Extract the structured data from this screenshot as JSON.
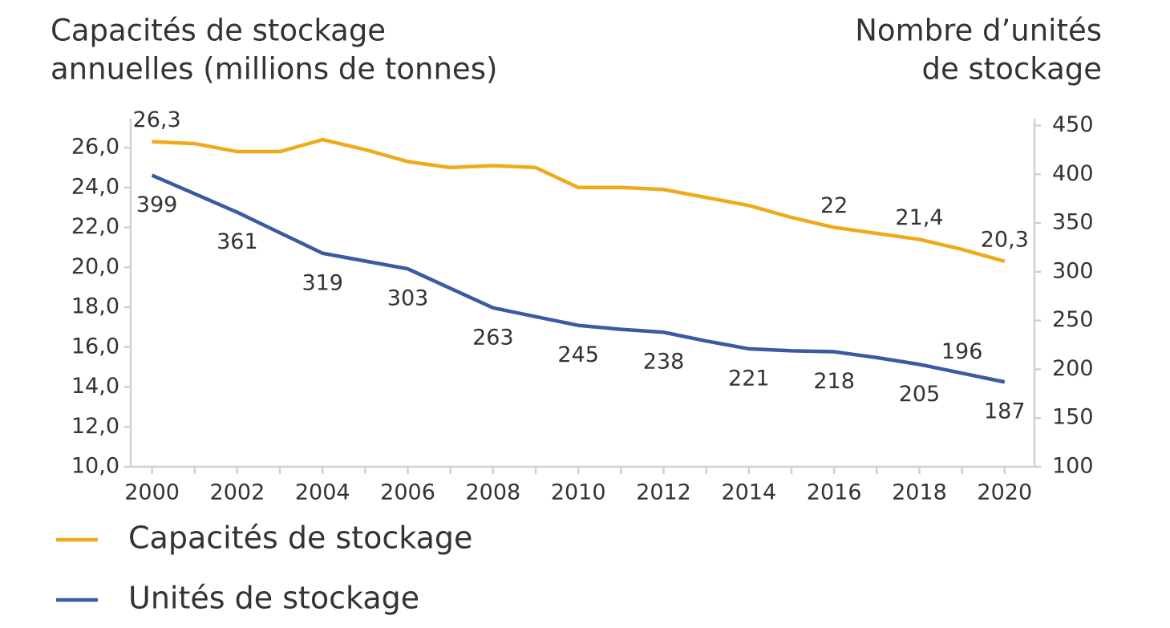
{
  "chart_data": {
    "type": "line",
    "ylabel": [
      "Capacités de stockage",
      "annuelles (millions de tonnes)"
    ],
    "y2label": [
      "Nombre d’unités",
      "de stockage"
    ],
    "x": [
      2000,
      2001,
      2002,
      2003,
      2004,
      2005,
      2006,
      2007,
      2008,
      2009,
      2010,
      2011,
      2012,
      2013,
      2014,
      2015,
      2016,
      2017,
      2018,
      2019,
      2020
    ],
    "series": [
      {
        "name": "Capacités de stockage",
        "color": "#f0a91a",
        "axis": "y",
        "values": [
          26.3,
          26.2,
          25.8,
          25.8,
          26.4,
          25.9,
          25.3,
          25.0,
          25.1,
          25.0,
          24.0,
          24.0,
          23.9,
          23.5,
          23.1,
          22.5,
          22.0,
          21.7,
          21.4,
          20.9,
          20.3
        ],
        "value_labels": [
          "26,3",
          null,
          null,
          null,
          null,
          null,
          null,
          null,
          null,
          null,
          null,
          null,
          null,
          null,
          null,
          null,
          "22",
          null,
          "21,4",
          null,
          "20,3"
        ]
      },
      {
        "name": "Unités de stockage",
        "color": "#3c5aa0",
        "axis": "y2",
        "values": [
          399,
          380,
          361,
          340,
          319,
          311,
          303,
          283,
          263,
          254,
          245,
          241,
          238,
          229,
          221,
          219,
          218,
          212,
          205,
          196,
          187
        ],
        "value_labels": [
          "399",
          null,
          "361",
          null,
          "319",
          null,
          "303",
          null,
          "263",
          null,
          "245",
          null,
          "238",
          null,
          "221",
          null,
          "218",
          null,
          "205",
          "196",
          "187"
        ]
      }
    ],
    "xlim": [
      1999.5,
      2020.7
    ],
    "xticks": [
      2000,
      2002,
      2004,
      2006,
      2008,
      2010,
      2012,
      2014,
      2016,
      2018,
      2020
    ],
    "ylim": [
      10,
      27.45
    ],
    "yticks": [
      {
        "value": 10,
        "label": "10,0"
      },
      {
        "value": 12,
        "label": "12,0"
      },
      {
        "value": 14,
        "label": "14,0"
      },
      {
        "value": 16,
        "label": "16,0"
      },
      {
        "value": 18,
        "label": "18,0"
      },
      {
        "value": 20,
        "label": "20,0"
      },
      {
        "value": 22,
        "label": "22,0"
      },
      {
        "value": 24,
        "label": "24,0"
      },
      {
        "value": 26,
        "label": "26,0"
      }
    ],
    "y2lim": [
      100,
      457
    ],
    "y2ticks": [
      100,
      150,
      200,
      250,
      300,
      350,
      400,
      450
    ],
    "legend": "bottom-left"
  }
}
